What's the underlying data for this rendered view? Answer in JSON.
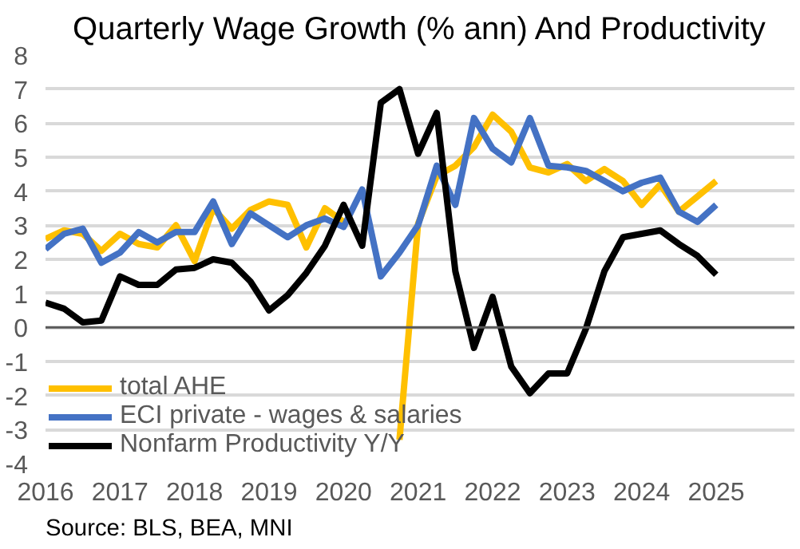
{
  "chart_data": {
    "type": "line",
    "title": "Quarterly Wage Growth (% ann) And Productivity",
    "x": [
      2016,
      2016.25,
      2016.5,
      2016.75,
      2017,
      2017.25,
      2017.5,
      2017.75,
      2018,
      2018.25,
      2018.5,
      2018.75,
      2019,
      2019.25,
      2019.5,
      2019.75,
      2020,
      2020.25,
      2020.5,
      2020.75,
      2021,
      2021.25,
      2021.5,
      2021.75,
      2022,
      2022.25,
      2022.5,
      2022.75,
      2023,
      2023.25,
      2023.5,
      2023.75,
      2024,
      2024.25,
      2024.5,
      2024.75,
      2025
    ],
    "series": [
      {
        "name": "total AHE",
        "color": "#ffc000",
        "values": [
          2.6,
          2.85,
          2.75,
          2.25,
          2.75,
          2.45,
          2.35,
          3.0,
          1.95,
          3.5,
          2.9,
          3.45,
          3.7,
          3.6,
          2.35,
          3.5,
          3.1,
          null,
          null,
          -3.3,
          3.05,
          4.45,
          4.75,
          5.3,
          6.25,
          5.75,
          4.7,
          4.55,
          4.8,
          4.3,
          4.65,
          4.3,
          3.6,
          4.2,
          3.4,
          3.85,
          4.3
        ]
      },
      {
        "name": "ECI private - wages & salaries",
        "color": "#4472c4",
        "values": [
          2.3,
          2.75,
          2.9,
          1.9,
          2.2,
          2.8,
          2.5,
          2.8,
          2.8,
          3.7,
          2.45,
          3.35,
          3.0,
          2.65,
          3.0,
          3.2,
          2.95,
          4.05,
          1.5,
          2.2,
          3.0,
          4.75,
          3.6,
          6.15,
          5.25,
          4.85,
          6.15,
          4.75,
          4.7,
          4.6,
          4.3,
          4.0,
          4.25,
          4.4,
          3.4,
          3.1,
          3.6
        ]
      },
      {
        "name": "Nonfarm Productivity Y/Y",
        "color": "#000000",
        "values": [
          0.73,
          0.55,
          0.15,
          0.2,
          1.5,
          1.25,
          1.25,
          1.7,
          1.75,
          2.0,
          1.9,
          1.35,
          0.5,
          0.95,
          1.6,
          2.4,
          3.6,
          2.4,
          6.6,
          7.0,
          5.1,
          6.3,
          1.65,
          -0.6,
          0.9,
          -1.15,
          -1.93,
          -1.35,
          -1.35,
          -0.05,
          1.65,
          2.65,
          2.75,
          2.85,
          2.45,
          2.1,
          1.55
        ]
      }
    ],
    "xlim": [
      2016,
      2026.05
    ],
    "xticks": [
      2016,
      2017,
      2018,
      2019,
      2020,
      2021,
      2022,
      2023,
      2024,
      2025
    ],
    "ylim": [
      -4,
      8
    ],
    "yticks": [
      -4,
      -3,
      -2,
      -1,
      0,
      1,
      2,
      3,
      4,
      5,
      6,
      7,
      8
    ],
    "grid": "y",
    "legend": "bottom left",
    "ref_lines": [
      {
        "axis": "y",
        "value": 0,
        "color": "#595959"
      }
    ],
    "annotations": [
      "Source: BLS, BEA, MNI"
    ]
  }
}
